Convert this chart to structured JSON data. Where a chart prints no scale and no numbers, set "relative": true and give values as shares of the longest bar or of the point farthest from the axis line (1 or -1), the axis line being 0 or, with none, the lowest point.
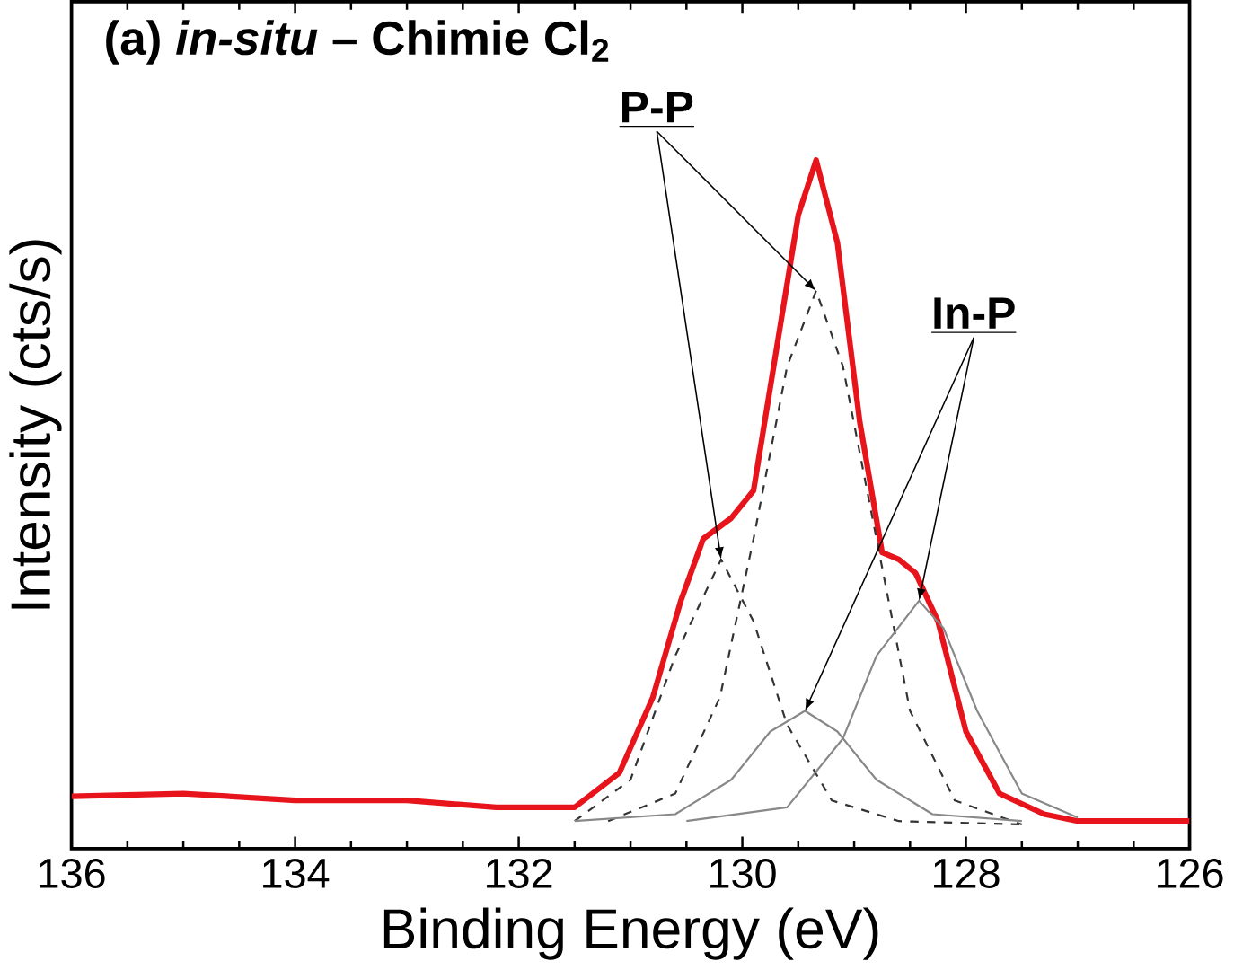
{
  "chart_data": {
    "type": "line",
    "title": "(a) *in-situ* – Chimie Cl$_{2}$",
    "xlabel": "Binding Energy (eV)",
    "ylabel": "Intensity (cts/s)",
    "relative": true,
    "xlim": [
      136,
      126
    ],
    "xticks": [
      136,
      134,
      132,
      130,
      128,
      126
    ],
    "grid": false,
    "marker": "none",
    "series": [
      {
        "color": "#e8141c",
        "line_style": "solid",
        "x": [
          136,
          135,
          134,
          133,
          132.2,
          131.5,
          131.1,
          130.8,
          130.55,
          130.35,
          130.1,
          129.9,
          129.7,
          129.5,
          129.34,
          129.15,
          128.95,
          128.75,
          128.6,
          128.45,
          128.25,
          128.0,
          127.7,
          127.3,
          127,
          126.5,
          126
        ],
        "values": [
          0.076,
          0.08,
          0.07,
          0.07,
          0.06,
          0.06,
          0.11,
          0.22,
          0.36,
          0.45,
          0.48,
          0.52,
          0.72,
          0.92,
          1.0,
          0.88,
          0.62,
          0.43,
          0.42,
          0.4,
          0.33,
          0.17,
          0.08,
          0.05,
          0.04,
          0.04,
          0.04
        ]
      },
      {
        "color": "#333333",
        "line_style": "dashed",
        "x": [
          131.5,
          131.0,
          130.6,
          130.19,
          129.9,
          129.6,
          129.2,
          128.6,
          127.5
        ],
        "values": [
          0.04,
          0.1,
          0.28,
          0.42,
          0.33,
          0.18,
          0.07,
          0.04,
          0.035
        ]
      },
      {
        "color": "#333333",
        "line_style": "dashed",
        "x": [
          131.2,
          130.6,
          130.2,
          129.9,
          129.6,
          129.34,
          129.1,
          128.8,
          128.5,
          128.1,
          127.5
        ],
        "values": [
          0.04,
          0.08,
          0.22,
          0.45,
          0.7,
          0.81,
          0.7,
          0.45,
          0.2,
          0.07,
          0.035
        ]
      },
      {
        "color": "#888888",
        "line_style": "solid",
        "x": [
          131.5,
          130.6,
          130.1,
          129.75,
          129.44,
          129.15,
          128.8,
          128.3,
          127.5
        ],
        "values": [
          0.04,
          0.05,
          0.1,
          0.17,
          0.2,
          0.17,
          0.1,
          0.05,
          0.04
        ]
      },
      {
        "color": "#888888",
        "line_style": "solid",
        "x": [
          130.5,
          129.6,
          129.1,
          128.8,
          128.42,
          128.2,
          127.9,
          127.5,
          127.0
        ],
        "values": [
          0.04,
          0.06,
          0.16,
          0.28,
          0.36,
          0.32,
          0.2,
          0.08,
          0.045
        ]
      }
    ],
    "annotations": [
      "**P-P**",
      "**In-P**"
    ]
  }
}
